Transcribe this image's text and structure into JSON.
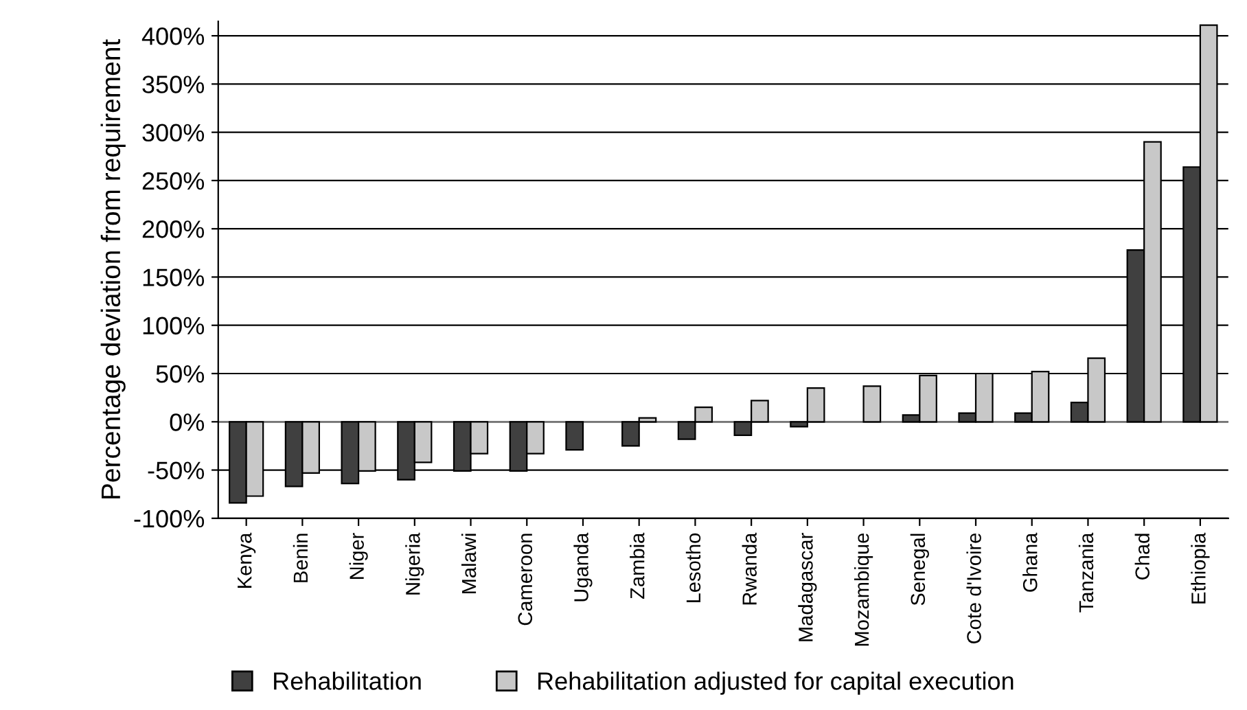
{
  "chart_data": {
    "type": "bar",
    "ylabel": "Percentage deviation from requirement",
    "categories": [
      "Kenya",
      "Benin",
      "Niger",
      "Nigeria",
      "Malawi",
      "Cameroon",
      "Uganda",
      "Zambia",
      "Lesotho",
      "Rwanda",
      "Madagascar",
      "Mozambique",
      "Senegal",
      "Cote d'Ivoire",
      "Ghana",
      "Tanzania",
      "Chad",
      "Ethiopia"
    ],
    "series": [
      {
        "name": "Rehabilitation",
        "color": "#404040",
        "values": [
          -84,
          -67,
          -64,
          -60,
          -51,
          -51,
          -29,
          -25,
          -18,
          -14,
          -5,
          null,
          7,
          9,
          9,
          20,
          178,
          264
        ]
      },
      {
        "name": "Rehabilitation adjusted for capital execution",
        "color": "#c8c8c8",
        "values": [
          -77,
          -53,
          -51,
          -42,
          -33,
          -33,
          null,
          4,
          15,
          22,
          35,
          37,
          48,
          50,
          52,
          66,
          290,
          411
        ]
      }
    ],
    "ylim": [
      -100,
      415
    ],
    "yticks": [
      {
        "value": -100,
        "label": "-100%"
      },
      {
        "value": -50,
        "label": "-50%"
      },
      {
        "value": 0,
        "label": "0%"
      },
      {
        "value": 50,
        "label": "50%"
      },
      {
        "value": 100,
        "label": "100%"
      },
      {
        "value": 150,
        "label": "150%"
      },
      {
        "value": 200,
        "label": "200%"
      },
      {
        "value": 250,
        "label": "250%"
      },
      {
        "value": 300,
        "label": "300%"
      },
      {
        "value": 350,
        "label": "350%"
      },
      {
        "value": 400,
        "label": "400%"
      }
    ],
    "grid": "y",
    "legend": "bottom"
  }
}
